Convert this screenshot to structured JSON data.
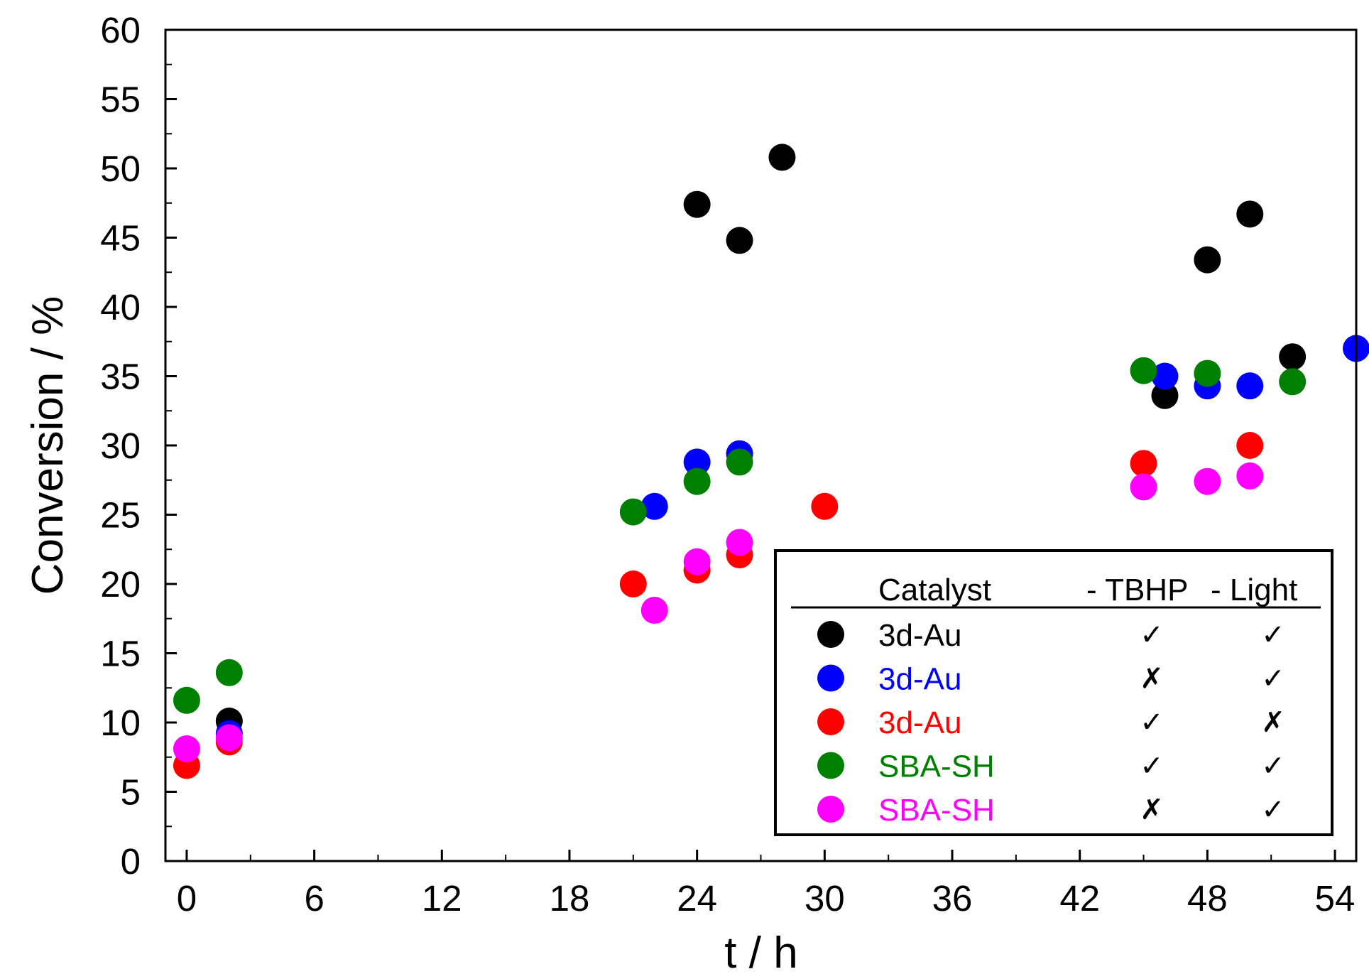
{
  "chart_data": {
    "type": "scatter",
    "xlabel": "t / h",
    "ylabel": "Conversion / %",
    "xlim": [
      -1,
      55
    ],
    "ylim": [
      0,
      60
    ],
    "xticks": [
      0,
      6,
      12,
      18,
      24,
      30,
      36,
      42,
      48,
      54
    ],
    "yticks": [
      0,
      5,
      10,
      15,
      20,
      25,
      30,
      35,
      40,
      45,
      50,
      55,
      60
    ],
    "series": [
      {
        "name": "3d-Au",
        "color": "#000000",
        "tbhp": "✓",
        "light": "✓",
        "points": [
          [
            2,
            10.1
          ],
          [
            24,
            47.4
          ],
          [
            26,
            44.8
          ],
          [
            28,
            50.8
          ],
          [
            46,
            33.6
          ],
          [
            48,
            43.4
          ],
          [
            50,
            46.7
          ],
          [
            52,
            36.4
          ]
        ]
      },
      {
        "name": "3d-Au",
        "color": "#0000ff",
        "tbhp": "✗",
        "light": "✓",
        "points": [
          [
            2,
            9.2
          ],
          [
            22,
            25.6
          ],
          [
            24,
            28.8
          ],
          [
            26,
            29.4
          ],
          [
            46,
            35.0
          ],
          [
            48,
            34.3
          ],
          [
            50,
            34.3
          ],
          [
            55,
            37.0
          ]
        ]
      },
      {
        "name": "3d-Au",
        "color": "#ff0000",
        "tbhp": "✓",
        "light": "✗",
        "points": [
          [
            0,
            6.9
          ],
          [
            2,
            8.6
          ],
          [
            21,
            20.0
          ],
          [
            24,
            21.0
          ],
          [
            26,
            22.1
          ],
          [
            30,
            25.6
          ],
          [
            45,
            28.7
          ],
          [
            50,
            30.0
          ]
        ]
      },
      {
        "name": "SBA-SH",
        "color": "#008000",
        "tbhp": "✓",
        "light": "✓",
        "points": [
          [
            0,
            11.6
          ],
          [
            2,
            13.6
          ],
          [
            21,
            25.2
          ],
          [
            24,
            27.4
          ],
          [
            26,
            28.8
          ],
          [
            45,
            35.4
          ],
          [
            48,
            35.2
          ],
          [
            52,
            34.6
          ]
        ]
      },
      {
        "name": "SBA-SH",
        "color": "#ff00ff",
        "tbhp": "✗",
        "light": "✓",
        "points": [
          [
            0,
            8.1
          ],
          [
            2,
            8.9
          ],
          [
            22,
            18.1
          ],
          [
            24,
            21.6
          ],
          [
            26,
            23.0
          ],
          [
            45,
            27.0
          ],
          [
            48,
            27.4
          ],
          [
            50,
            27.8
          ]
        ]
      }
    ],
    "legend": {
      "position": "bottom-right",
      "headers": {
        "catalyst": "Catalyst",
        "tbhp": "- TBHP",
        "light": "- Light"
      }
    }
  }
}
